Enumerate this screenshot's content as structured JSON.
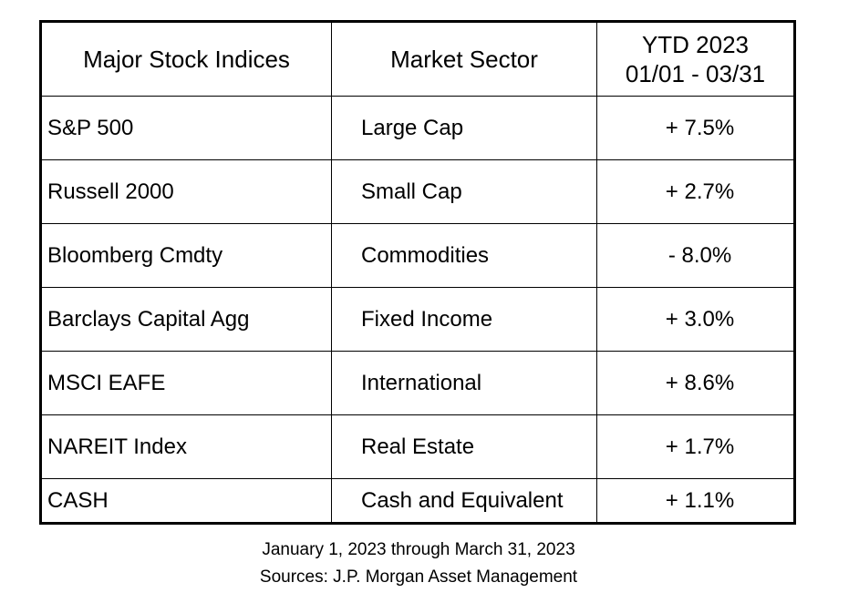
{
  "table": {
    "header": [
      "Major Stock Indices",
      "Market Sector",
      [
        "YTD 2023",
        "01/01 - 03/31"
      ]
    ],
    "rows": [
      [
        "S&P 500",
        "Large Cap",
        "+ 7.5%"
      ],
      [
        "Russell 2000",
        "Small Cap",
        "+ 2.7%"
      ],
      [
        "Bloomberg Cmdty",
        "Commodities",
        "- 8.0%"
      ],
      [
        "Barclays Capital Agg",
        "Fixed Income",
        "+ 3.0%"
      ],
      [
        "MSCI EAFE",
        "International",
        "+ 8.6%"
      ],
      [
        "NAREIT Index",
        "Real Estate",
        "+ 1.7%"
      ],
      [
        "CASH",
        "Cash and Equivalent",
        "+ 1.1%"
      ]
    ]
  },
  "footer": {
    "period": "January 1, 2023 through March 31, 2023",
    "sources": "Sources: J.P. Morgan Asset Management"
  }
}
